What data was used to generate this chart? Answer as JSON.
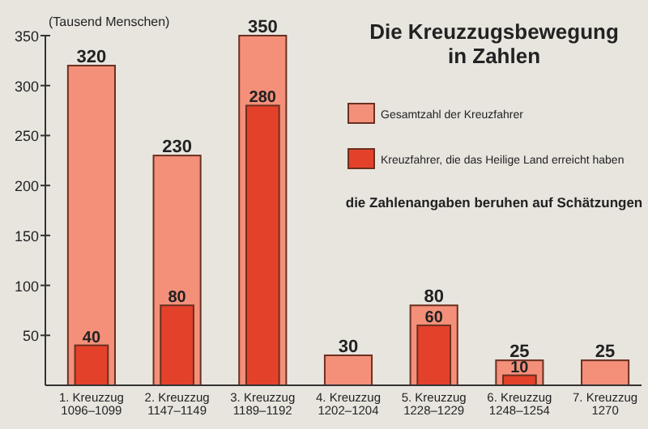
{
  "chart_data": {
    "type": "bar",
    "title": "Die Kreuzzugsbewegung\nin Zahlen",
    "ylabel": "(Tausend Menschen)",
    "annotations": [
      "die Zahlenangaben beruhen auf Schätzungen"
    ],
    "categories": [
      "1. Kreuzzug\n1096–1099",
      "2. Kreuzzug\n1147–1149",
      "3. Kreuzzug\n1189–1192",
      "4. Kreuzzug\n1202–1204",
      "5. Kreuzzug\n1228–1229",
      "6. Kreuzzug\n1248–1254",
      "7. Kreuzzug\n1270"
    ],
    "series": [
      {
        "name": "Gesamtzahl der Kreuzfahrer",
        "color": "#f4907a",
        "values": [
          320,
          230,
          350,
          30,
          80,
          25,
          25
        ]
      },
      {
        "name": "Kreuzfahrer, die das Heilige Land erreicht haben",
        "color": "#e4412b",
        "values": [
          40,
          80,
          280,
          null,
          60,
          10,
          null
        ]
      }
    ],
    "ylim": [
      0,
      350
    ],
    "yticks": [
      50,
      100,
      150,
      200,
      250,
      300,
      350
    ],
    "data_labels": true,
    "legend": "right",
    "grid": false
  }
}
